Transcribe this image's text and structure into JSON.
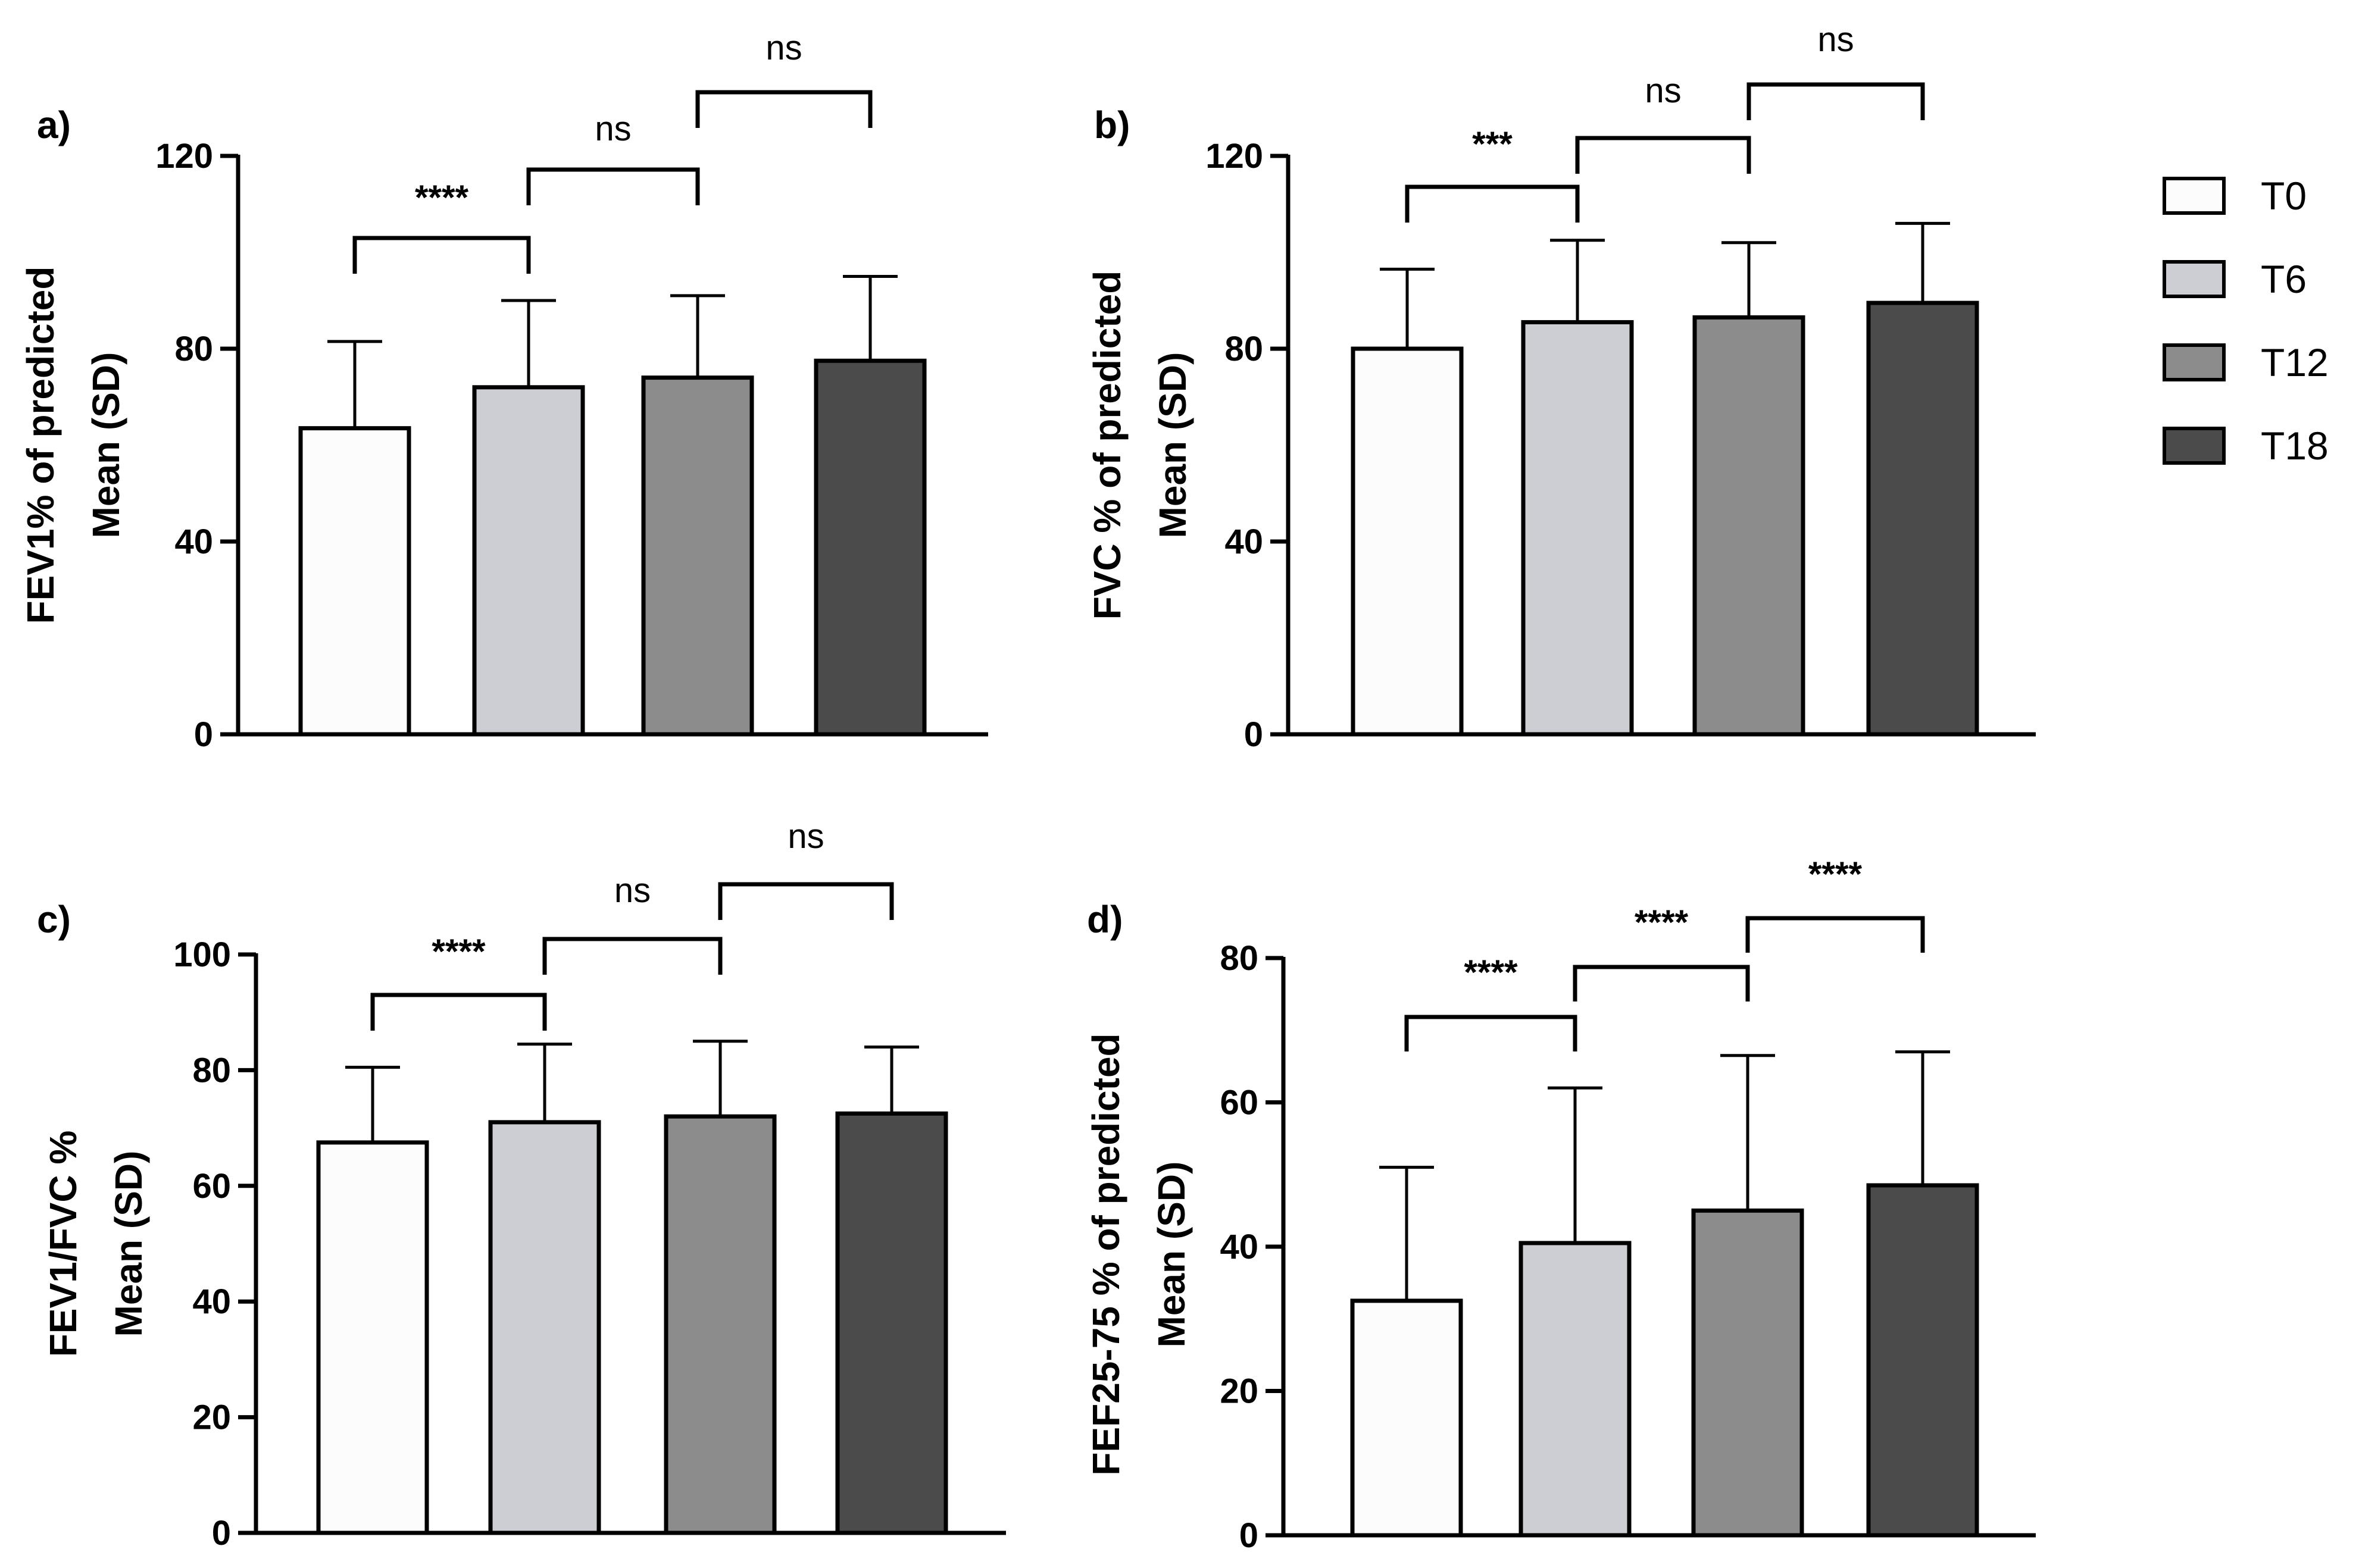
{
  "chart_data": [
    {
      "type": "bar",
      "panel": "a)",
      "categories": [
        "T0",
        "T6",
        "T12",
        "T18"
      ],
      "values": [
        63.5,
        72,
        74,
        77.5
      ],
      "errors": [
        18,
        18,
        17,
        17.5
      ],
      "ylabel": [
        "FEV1% of predicted",
        "Mean (SD)"
      ],
      "ylim": [
        0,
        120
      ],
      "yticks": [
        "0",
        "40",
        "80",
        "120"
      ],
      "comparisons": [
        {
          "from": 0,
          "to": 1,
          "label": "****"
        },
        {
          "from": 1,
          "to": 2,
          "label": "ns"
        },
        {
          "from": 2,
          "to": 3,
          "label": "ns"
        }
      ]
    },
    {
      "type": "bar",
      "panel": "b)",
      "categories": [
        "T0",
        "T6",
        "T12",
        "T18"
      ],
      "values": [
        80,
        85.5,
        86.5,
        89.5
      ],
      "errors": [
        16.5,
        17,
        15.5,
        16.5
      ],
      "ylabel": [
        "FVC % of predicted",
        "Mean (SD)"
      ],
      "ylim": [
        0,
        120
      ],
      "yticks": [
        "0",
        "40",
        "80",
        "120"
      ],
      "comparisons": [
        {
          "from": 0,
          "to": 1,
          "label": "***"
        },
        {
          "from": 1,
          "to": 2,
          "label": "ns"
        },
        {
          "from": 2,
          "to": 3,
          "label": "ns"
        }
      ]
    },
    {
      "type": "bar",
      "panel": "c)",
      "categories": [
        "T0",
        "T6",
        "T12",
        "T18"
      ],
      "values": [
        67.5,
        71,
        72,
        72.5
      ],
      "errors": [
        13,
        13.5,
        13,
        11.5
      ],
      "ylabel": [
        "FEV1/FVC %",
        "Mean (SD)"
      ],
      "ylim": [
        0,
        100
      ],
      "yticks": [
        "0",
        "20",
        "40",
        "60",
        "80",
        "100"
      ],
      "comparisons": [
        {
          "from": 0,
          "to": 1,
          "label": "****"
        },
        {
          "from": 1,
          "to": 2,
          "label": "ns"
        },
        {
          "from": 2,
          "to": 3,
          "label": "ns"
        }
      ]
    },
    {
      "type": "bar",
      "panel": "d)",
      "categories": [
        "T0",
        "T6",
        "T12",
        "T18"
      ],
      "values": [
        32.5,
        40.5,
        45,
        48.5
      ],
      "errors": [
        18.5,
        21.5,
        21.5,
        18.5
      ],
      "ylabel": [
        "FEF25-75 % of predicted",
        "Mean (SD)"
      ],
      "ylim": [
        0,
        80
      ],
      "yticks": [
        "0",
        "20",
        "40",
        "60",
        "80"
      ],
      "comparisons": [
        {
          "from": 0,
          "to": 1,
          "label": "****"
        },
        {
          "from": 1,
          "to": 2,
          "label": "****"
        },
        {
          "from": 2,
          "to": 3,
          "label": "****"
        }
      ]
    }
  ],
  "legend": {
    "items": [
      {
        "label": "T0",
        "color": "#fcfcfc"
      },
      {
        "label": "T6",
        "color": "#cdced3"
      },
      {
        "label": "T12",
        "color": "#8c8c8c"
      },
      {
        "label": "T18",
        "color": "#4a4b4a"
      }
    ]
  }
}
